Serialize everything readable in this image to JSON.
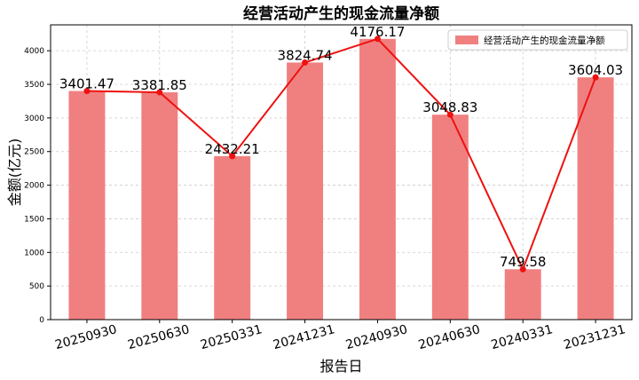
{
  "chart_data": {
    "type": "bar",
    "title": "经营活动产生的现金流量净额",
    "xlabel": "报告日",
    "ylabel": "金额(亿元)",
    "categories": [
      "20250930",
      "20250630",
      "20250331",
      "20241231",
      "20240930",
      "20240630",
      "20240331",
      "20231231"
    ],
    "series": [
      {
        "name": "经营活动产生的现金流量净额",
        "values": [
          3401.47,
          3381.85,
          2432.21,
          3824.74,
          4176.17,
          3048.83,
          749.58,
          3604.03
        ]
      }
    ],
    "data_labels": [
      "3401.47",
      "3381.85",
      "2432.21",
      "3824.74",
      "4176.17",
      "3048.83",
      "749.58",
      "3604.03"
    ],
    "yticks": [
      0,
      500,
      1000,
      1500,
      2000,
      2500,
      3000,
      3500,
      4000
    ],
    "ylim": [
      0,
      4385
    ],
    "grid": true,
    "legend_position": "top-right",
    "colors": {
      "bar": "#f08080",
      "line": "#ee1111",
      "grid": "#cccccc"
    }
  }
}
